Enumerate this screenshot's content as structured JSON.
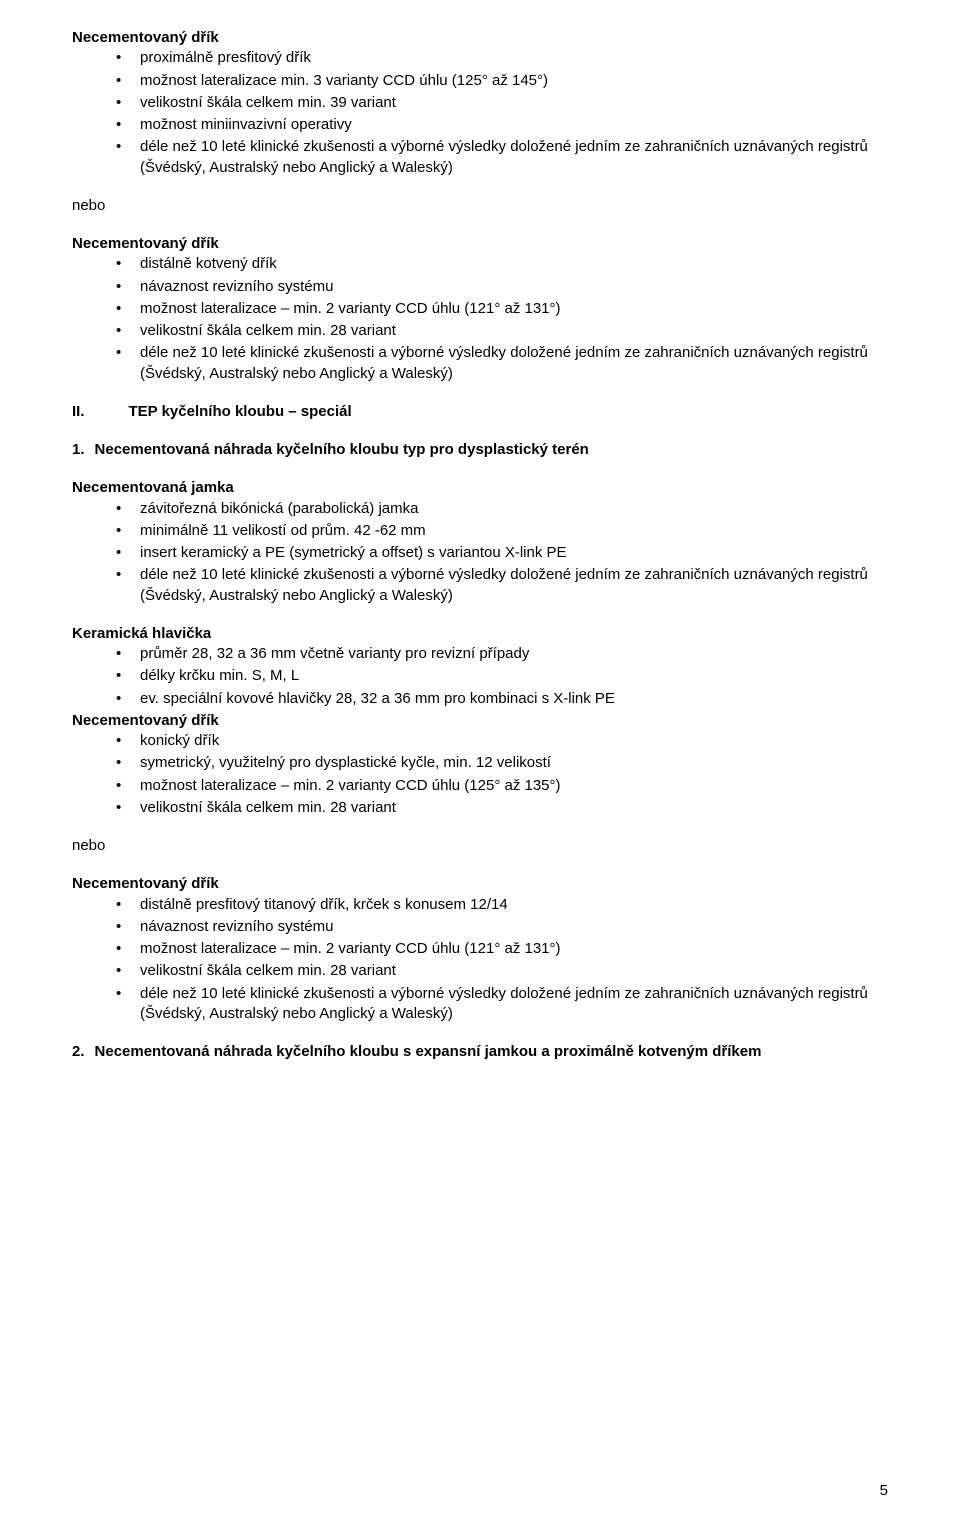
{
  "sec1": {
    "title": "Necementovaný dřík",
    "items": [
      "proximálně presfitový dřík",
      "možnost lateralizace min. 3 varianty CCD úhlu (125° až 145°)",
      "velikostní škála celkem min. 39 variant",
      "možnost miniinvazivní operativy",
      "déle než 10 leté klinické zkušenosti a výborné výsledky doložené jedním ze zahraničních uznávaných registrů (Švédský, Australský nebo Anglický a Waleský)"
    ]
  },
  "nebo": "nebo",
  "sec2": {
    "title": "Necementovaný dřík",
    "items": [
      "distálně kotvený dřík",
      "návaznost revizního systému",
      "možnost lateralizace – min. 2 varianty CCD úhlu (121° až 131°)",
      "velikostní škála celkem min. 28 variant",
      "déle než 10 leté klinické zkušenosti a výborné výsledky doložené jedním ze zahraničních uznávaných registrů (Švédský, Australský nebo Anglický a Waleský)"
    ]
  },
  "roman": {
    "num": "II.",
    "title": "TEP kyčelního kloubu – speciál"
  },
  "n1": {
    "num": "1.",
    "title": "Necementovaná náhrada kyčelního kloubu typ pro dysplastický terén"
  },
  "sec3": {
    "title": "Necementovaná jamka",
    "items": [
      "závitořezná bikónická (parabolická) jamka",
      "minimálně 11 velikostí od prům. 42 -62 mm",
      "insert keramický a PE (symetrický a offset) s variantou X-link PE",
      "déle než 10 leté klinické zkušenosti a výborné výsledky doložené jedním ze zahraničních uznávaných registrů (Švédský, Australský nebo Anglický a Waleský)"
    ]
  },
  "sec4a": {
    "title": "Keramická hlavička",
    "items": [
      "průměr 28, 32 a 36 mm včetně varianty pro revizní případy",
      "délky krčku min. S, M, L",
      "ev. speciální kovové hlavičky 28, 32 a 36 mm pro kombinaci s X-link PE"
    ]
  },
  "sec4b": {
    "title": "Necementovaný dřík",
    "items": [
      "konický dřík",
      "symetrický, využitelný pro dysplastické kyčle, min. 12 velikostí",
      "možnost lateralizace – min. 2 varianty CCD úhlu (125° až 135°)",
      "velikostní škála celkem min. 28 variant"
    ]
  },
  "sec5": {
    "title": "Necementovaný dřík",
    "items": [
      "distálně presfitový titanový dřík, krček s konusem 12/14",
      "návaznost revizního systému",
      "možnost lateralizace – min. 2 varianty CCD úhlu (121° až 131°)",
      "velikostní škála celkem min. 28 variant",
      "déle než 10 leté klinické zkušenosti a výborné výsledky doložené jedním ze zahraničních uznávaných registrů (Švédský, Australský nebo Anglický a Waleský)"
    ]
  },
  "n2": {
    "num": "2.",
    "title": "Necementovaná náhrada kyčelního kloubu s expansní jamkou a proximálně kotveným dříkem"
  },
  "pagenum": "5"
}
